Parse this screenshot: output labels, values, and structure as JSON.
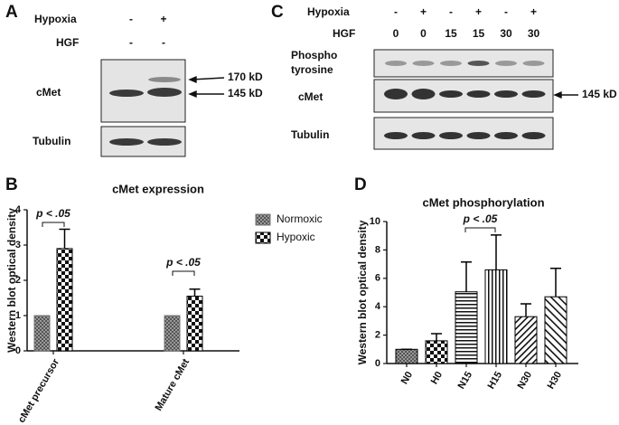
{
  "panel_a": {
    "letter": "A",
    "hypoxia_label": "Hypoxia",
    "hypoxia": [
      "-",
      "+"
    ],
    "hgf_label": "HGF",
    "hgf": [
      "-",
      "-"
    ],
    "rows": [
      "cMet",
      "Tubulin"
    ],
    "markers": [
      "170 kD",
      "145 kD"
    ]
  },
  "panel_c": {
    "letter": "C",
    "hypoxia_label": "Hypoxia",
    "hypoxia": [
      "-",
      "+",
      "-",
      "+",
      "-",
      "+"
    ],
    "hgf_label": "HGF",
    "hgf": [
      0,
      0,
      15,
      15,
      30,
      30
    ],
    "phospho_label": [
      "Phospho",
      "tyrosine"
    ],
    "rows": [
      "cMet",
      "Tubulin"
    ],
    "marker": "145 kD"
  },
  "chart_data": [
    {
      "type": "bar",
      "letter": "B",
      "title": "cMet expression",
      "y_label": "Western blot optical density",
      "categories": [
        "cMet precursor",
        "Mature cMet"
      ],
      "series": [
        {
          "name": "Normoxic",
          "color": "#777777",
          "values": [
            1,
            1
          ]
        },
        {
          "name": "Hypoxic",
          "color": "#000000",
          "values": [
            2.9,
            1.55
          ],
          "errors": [
            0.55,
            0.2
          ]
        }
      ],
      "ylim": [
        0,
        4
      ],
      "yticks": [
        0,
        1,
        2,
        3,
        4
      ],
      "annotations": [
        "p < .05",
        "p < .05"
      ]
    },
    {
      "type": "bar",
      "letter": "D",
      "title": "cMet phosphorylation",
      "y_label": "Western blot optical density",
      "categories": [
        "N0",
        "H0",
        "N15",
        "H15",
        "N30",
        "H30"
      ],
      "values": [
        1,
        1.6,
        5.05,
        6.6,
        3.3,
        4.7
      ],
      "errors": [
        0,
        0.5,
        2.1,
        2.45,
        0.9,
        2.0
      ],
      "color": "#000000",
      "ylim": [
        0,
        10
      ],
      "yticks": [
        0,
        2,
        4,
        6,
        8,
        10
      ],
      "annotations": [
        "p < .05"
      ]
    }
  ]
}
